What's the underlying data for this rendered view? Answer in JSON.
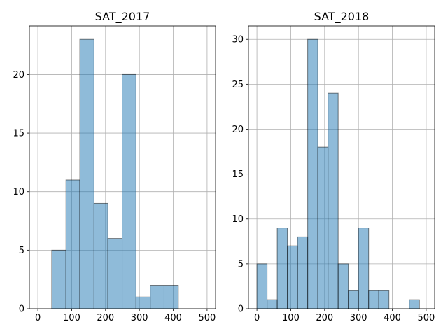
{
  "chart_data": [
    {
      "type": "bar",
      "title": "SAT_2017",
      "xlim": [
        -25,
        525
      ],
      "ylim": [
        0,
        24.15
      ],
      "xticks": [
        0,
        100,
        200,
        300,
        400,
        500
      ],
      "yticks": [
        0,
        5,
        10,
        15,
        20
      ],
      "grid": true,
      "bar_color": "#1f77b4",
      "bins": [
        {
          "x0": 41,
          "x1": 83,
          "count": 5
        },
        {
          "x0": 83,
          "x1": 124,
          "count": 11
        },
        {
          "x0": 124,
          "x1": 166,
          "count": 23
        },
        {
          "x0": 166,
          "x1": 207,
          "count": 9
        },
        {
          "x0": 207,
          "x1": 249,
          "count": 6
        },
        {
          "x0": 249,
          "x1": 290,
          "count": 20
        },
        {
          "x0": 290,
          "x1": 332,
          "count": 1
        },
        {
          "x0": 332,
          "x1": 373,
          "count": 2
        },
        {
          "x0": 373,
          "x1": 415,
          "count": 2
        }
      ]
    },
    {
      "type": "bar",
      "title": "SAT_2018",
      "xlim": [
        -25,
        525
      ],
      "ylim": [
        0,
        31.5
      ],
      "xticks": [
        0,
        100,
        200,
        300,
        400,
        500
      ],
      "yticks": [
        0,
        5,
        10,
        15,
        20,
        25,
        30
      ],
      "grid": true,
      "bar_color": "#1f77b4",
      "bins": [
        {
          "x0": 0,
          "x1": 30,
          "count": 5
        },
        {
          "x0": 30,
          "x1": 60,
          "count": 1
        },
        {
          "x0": 60,
          "x1": 90,
          "count": 9
        },
        {
          "x0": 90,
          "x1": 120,
          "count": 7
        },
        {
          "x0": 120,
          "x1": 150,
          "count": 8
        },
        {
          "x0": 150,
          "x1": 180,
          "count": 30
        },
        {
          "x0": 180,
          "x1": 210,
          "count": 18
        },
        {
          "x0": 210,
          "x1": 240,
          "count": 24
        },
        {
          "x0": 240,
          "x1": 270,
          "count": 5
        },
        {
          "x0": 270,
          "x1": 300,
          "count": 2
        },
        {
          "x0": 300,
          "x1": 330,
          "count": 9
        },
        {
          "x0": 330,
          "x1": 360,
          "count": 2
        },
        {
          "x0": 360,
          "x1": 390,
          "count": 2
        },
        {
          "x0": 390,
          "x1": 420,
          "count": 0
        },
        {
          "x0": 420,
          "x1": 450,
          "count": 0
        },
        {
          "x0": 450,
          "x1": 480,
          "count": 1
        }
      ]
    }
  ]
}
